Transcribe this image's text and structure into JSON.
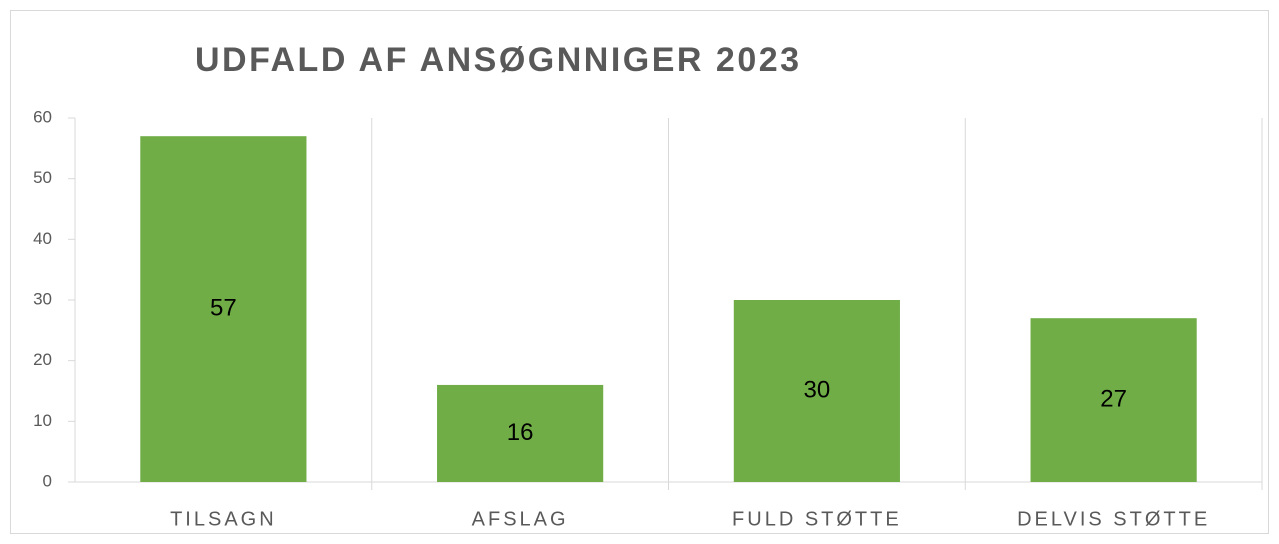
{
  "chart_data": {
    "type": "bar",
    "title": "UDFALD AF ANSØGNNIGER 2023",
    "categories": [
      "TILSAGN",
      "AFSLAG",
      "FULD STØTTE",
      "DELVIS STØTTE"
    ],
    "values": [
      57,
      16,
      30,
      27
    ],
    "color": "#70ad47",
    "ylim": [
      0,
      60
    ],
    "yticks": [
      0,
      10,
      20,
      30,
      40,
      50,
      60
    ],
    "grid": false
  }
}
